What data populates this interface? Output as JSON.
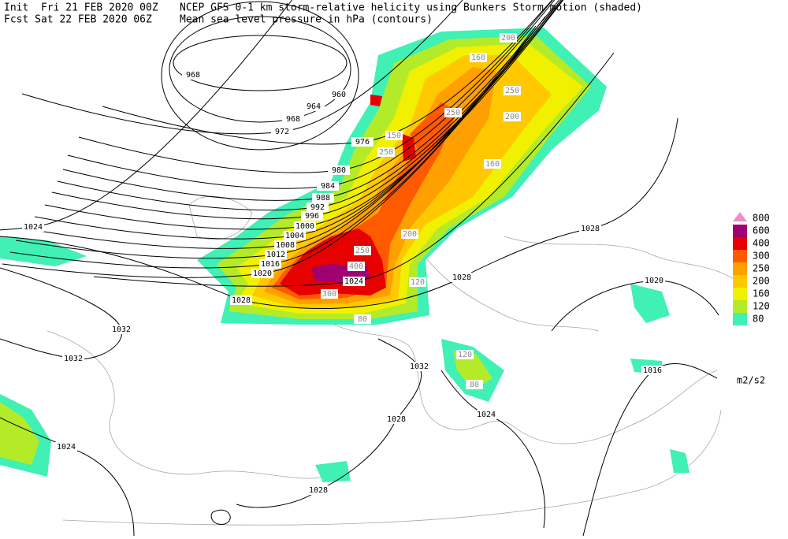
{
  "header": {
    "init": "Init  Fri 21 FEB 2020 00Z",
    "forecast": "Fcst Sat 22 FEB 2020 06Z",
    "title": "NCEP GFS 0-1 km storm-relative helicity using Bunkers Storm motion (shaded)",
    "subtitle": "Mean sea level pressure in hPa (contours)"
  },
  "legend": {
    "levels": [
      {
        "value": 80,
        "color": "#40f0b4"
      },
      {
        "value": 120,
        "color": "#b4eb28"
      },
      {
        "value": 160,
        "color": "#f0f000"
      },
      {
        "value": 200,
        "color": "#ffc800"
      },
      {
        "value": 250,
        "color": "#ffa000"
      },
      {
        "value": 300,
        "color": "#ff5a00"
      },
      {
        "value": 400,
        "color": "#e60000"
      },
      {
        "value": 600,
        "color": "#a00070"
      },
      {
        "value": 800,
        "color": "#f08cc8"
      }
    ],
    "units": "m2/s2"
  },
  "contour_labels": [
    "968",
    "960",
    "964",
    "968",
    "972",
    "976",
    "980",
    "984",
    "988",
    "992",
    "996",
    "1000",
    "1004",
    "1008",
    "1012",
    "1016",
    "1020",
    "1024",
    "1024",
    "1028",
    "1028",
    "1028",
    "1020",
    "1032",
    "1032",
    "1032",
    "1028",
    "1024",
    "1016",
    "1024",
    "1028"
  ],
  "shade_labels": [
    "200",
    "160",
    "250",
    "250",
    "200",
    "150",
    "250",
    "160",
    "250",
    "200",
    "300",
    "400",
    "120",
    "80",
    "120",
    "80"
  ]
}
